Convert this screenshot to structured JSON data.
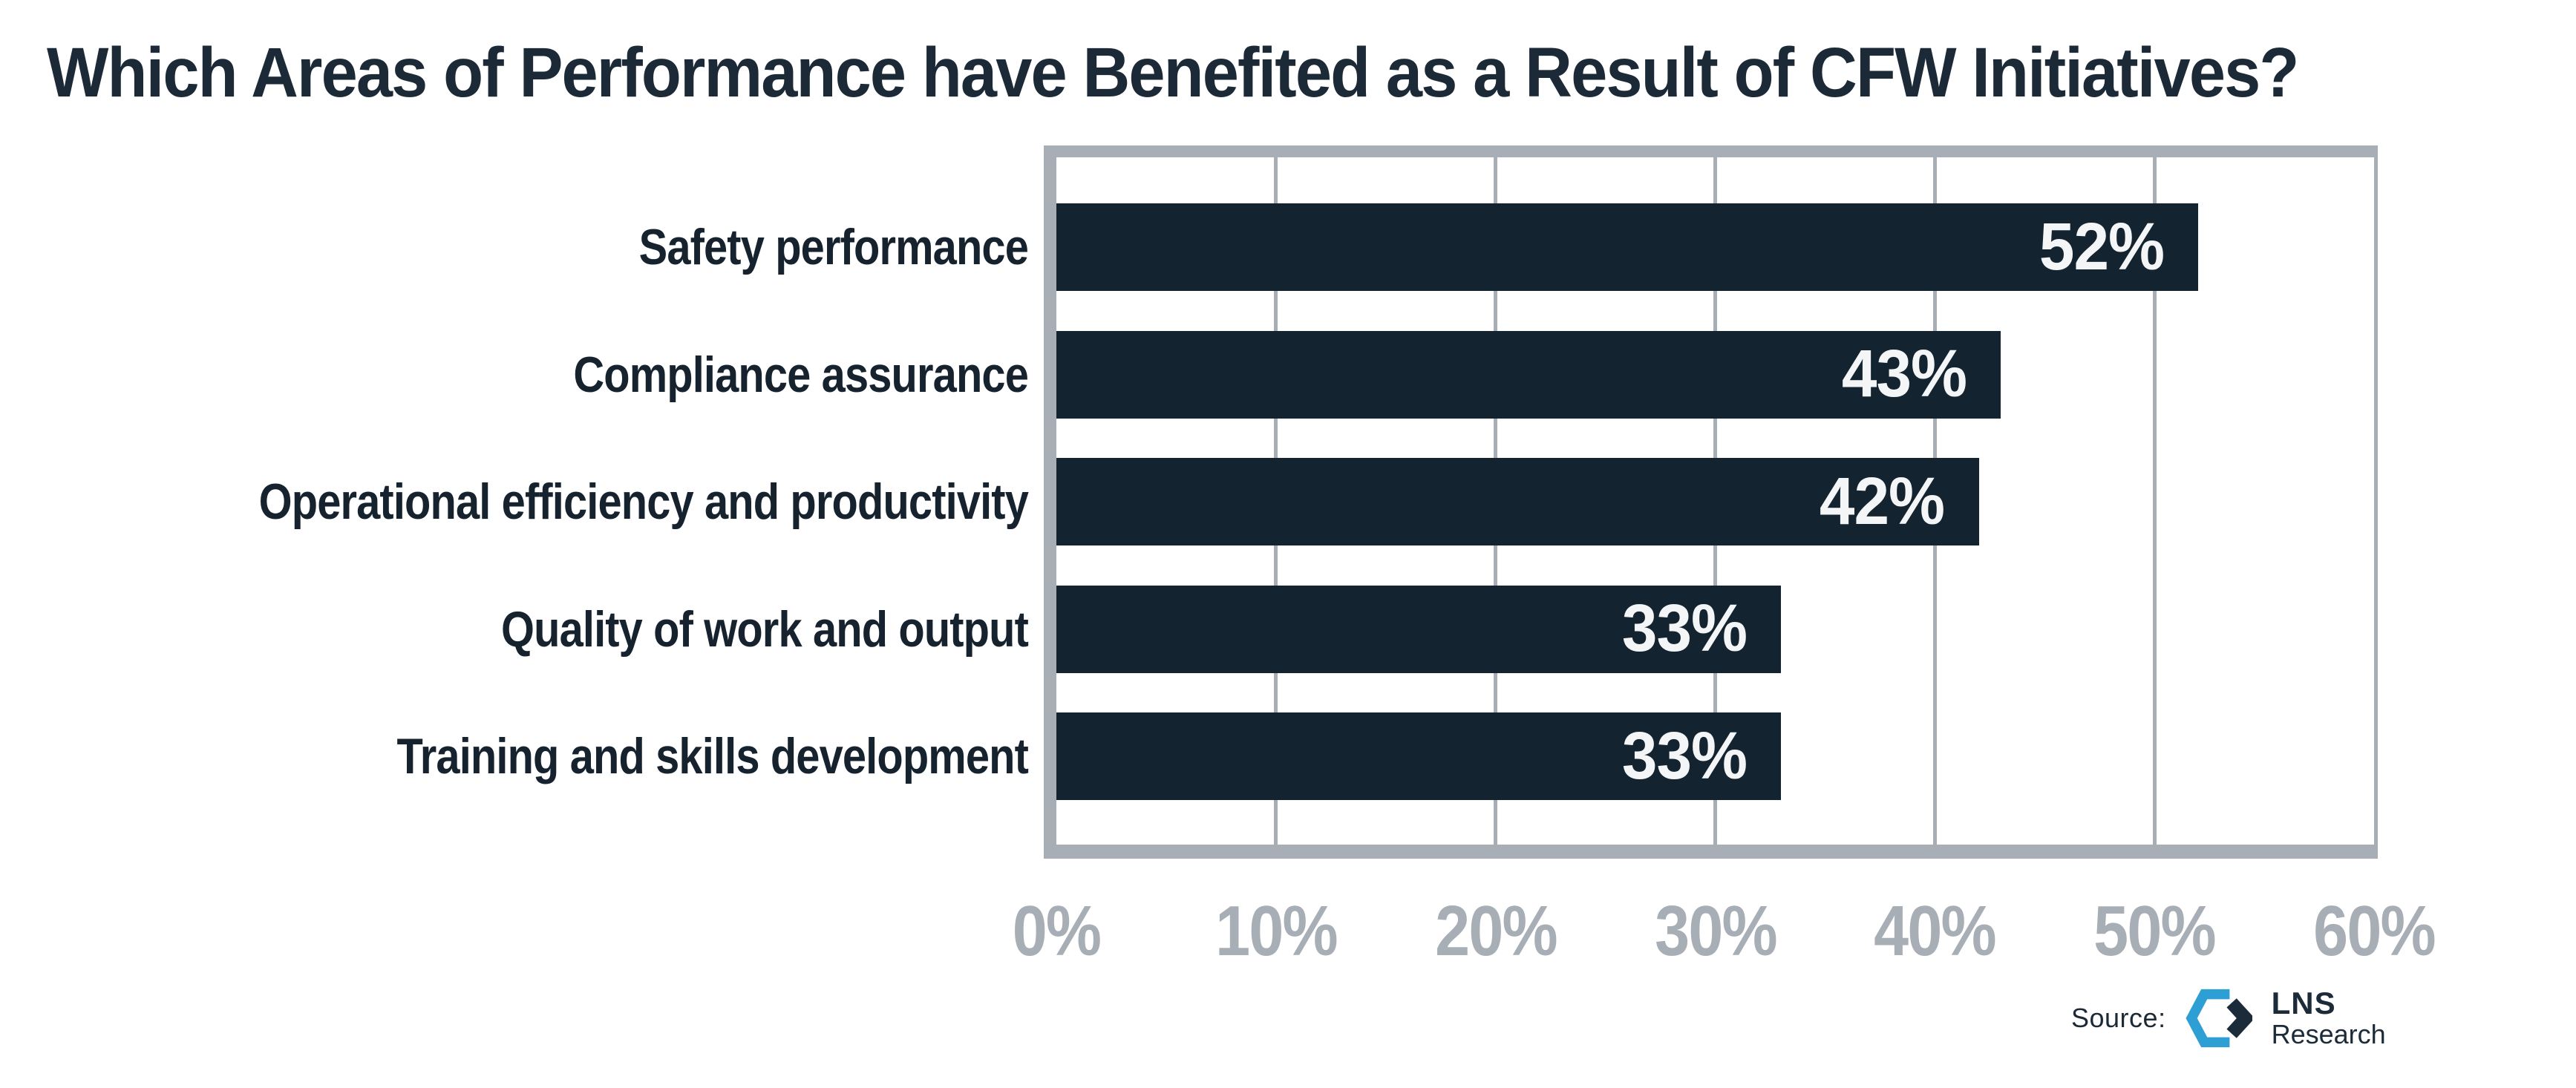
{
  "header": {
    "title": "Which Areas of Performance have Benefited as a Result of CFW Initiatives?"
  },
  "chart_data": {
    "type": "bar",
    "orientation": "horizontal",
    "title": "Which Areas of Performance have Benefited as a Result of CFW Initiatives?",
    "categories": [
      "Safety performance",
      "Compliance assurance",
      "Operational efficiency and productivity",
      "Quality of work and output",
      "Training and skills development"
    ],
    "values": [
      52,
      43,
      42,
      33,
      33
    ],
    "value_labels": [
      "52%",
      "43%",
      "42%",
      "33%",
      "33%"
    ],
    "xlim": [
      0,
      60
    ],
    "xticks": [
      0,
      10,
      20,
      30,
      40,
      50,
      60
    ],
    "xtick_labels": [
      "0%",
      "10%",
      "20%",
      "30%",
      "40%",
      "50%",
      "60%"
    ],
    "grid": "vertical gridlines on, drawn behind bars",
    "legend": "none",
    "bar_color": "#13232F",
    "value_label_color": "#F3F5F6",
    "axis_label_color": "#A8AEB5",
    "frame_color": "#A8AEB5"
  },
  "source": {
    "label": "Source:",
    "brand_top": "LNS",
    "brand_bottom": "Research",
    "logo_icon": "lns-hexagon-chevron-icon",
    "logo_blue": "#2E9FD5",
    "logo_navy": "#1C2B39"
  },
  "colors": {
    "background": "#FFFFFF",
    "title_text": "#1C2A38",
    "category_text": "#16232E",
    "bar_fill": "#13232F",
    "gray": "#A8AEB5"
  }
}
